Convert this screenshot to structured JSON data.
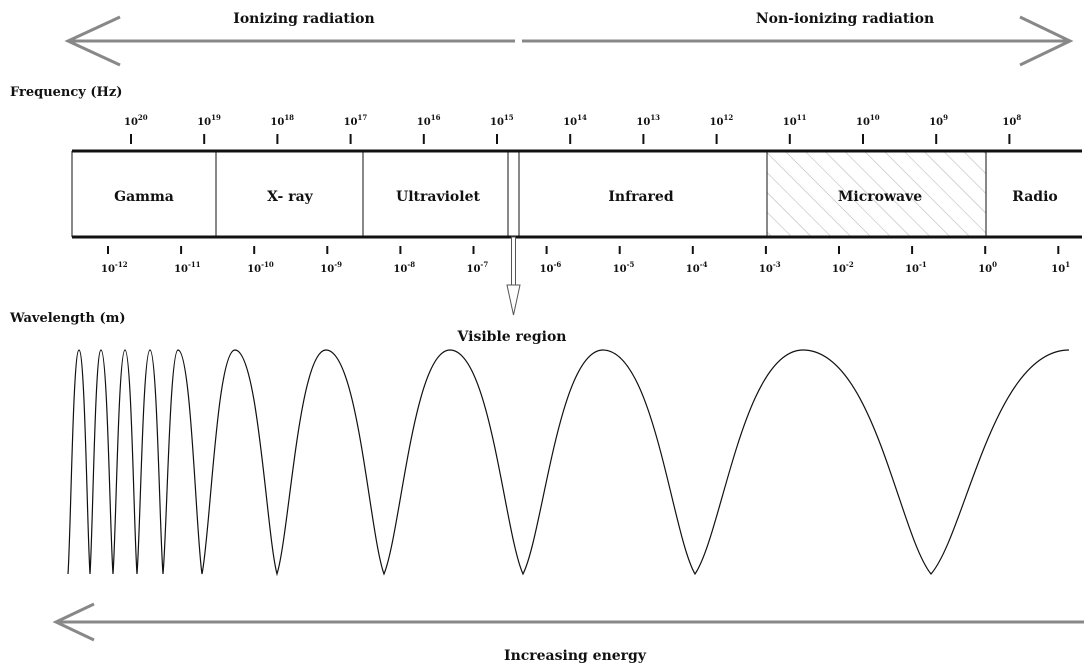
{
  "radiation": {
    "ionizing_label": "Ionizing radiation",
    "non_ionizing_label": "Non-ionizing radiation"
  },
  "frequency": {
    "axis_label": "Frequency (Hz)",
    "ticks": [
      {
        "base": "10",
        "exp": "20"
      },
      {
        "base": "10",
        "exp": "19"
      },
      {
        "base": "10",
        "exp": "18"
      },
      {
        "base": "10",
        "exp": "17"
      },
      {
        "base": "10",
        "exp": "16"
      },
      {
        "base": "10",
        "exp": "15"
      },
      {
        "base": "10",
        "exp": "14"
      },
      {
        "base": "10",
        "exp": "13"
      },
      {
        "base": "10",
        "exp": "12"
      },
      {
        "base": "10",
        "exp": "11"
      },
      {
        "base": "10",
        "exp": "10"
      },
      {
        "base": "10",
        "exp": "9"
      },
      {
        "base": "10",
        "exp": "8"
      }
    ]
  },
  "wavelength": {
    "axis_label": "Wavelength (m)",
    "ticks": [
      {
        "base": "10",
        "exp": "-12"
      },
      {
        "base": "10",
        "exp": "-11"
      },
      {
        "base": "10",
        "exp": "-10"
      },
      {
        "base": "10",
        "exp": "-9"
      },
      {
        "base": "10",
        "exp": "-8"
      },
      {
        "base": "10",
        "exp": "-7"
      },
      {
        "base": "10",
        "exp": "-6"
      },
      {
        "base": "10",
        "exp": "-5"
      },
      {
        "base": "10",
        "exp": "-4"
      },
      {
        "base": "10",
        "exp": "-3"
      },
      {
        "base": "10",
        "exp": "-2"
      },
      {
        "base": "10",
        "exp": "-1"
      },
      {
        "base": "10",
        "exp": "0"
      },
      {
        "base": "10",
        "exp": "1"
      }
    ]
  },
  "bands": [
    {
      "label": "Gamma"
    },
    {
      "label": "X- ray"
    },
    {
      "label": "Ultraviolet"
    },
    {
      "label": "Infrared"
    },
    {
      "label": "Microwave"
    },
    {
      "label": "Radio"
    }
  ],
  "visible_label": "Visible region",
  "energy_label": "Increasing energy",
  "colors": {
    "arrow": "#888888",
    "line": "#111111",
    "hatch": "#bbbbbb"
  }
}
